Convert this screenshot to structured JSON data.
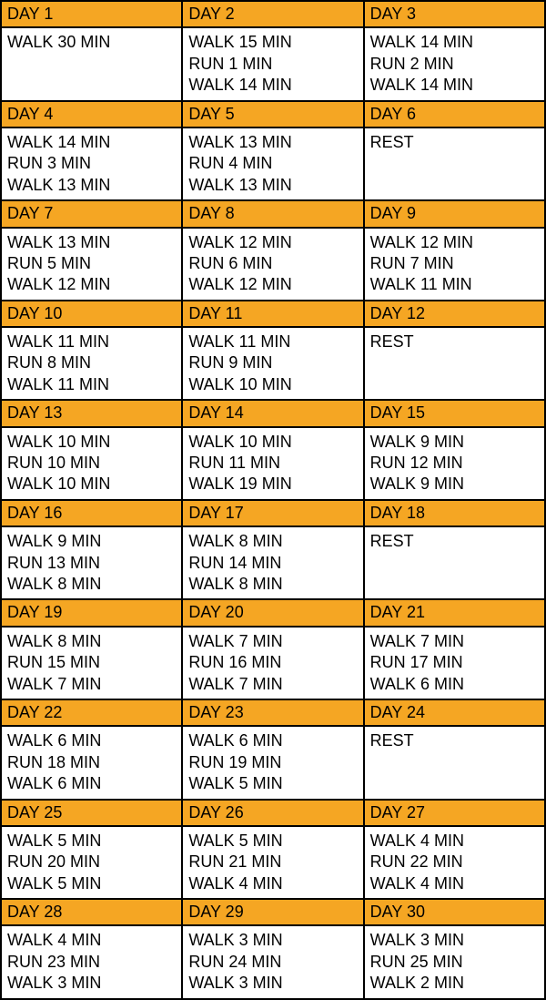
{
  "colors": {
    "header_bg": "#f5a623",
    "border": "#000000",
    "cell_bg": "#ffffff",
    "text": "#000000"
  },
  "font": {
    "family": "Segoe UI, Arial, sans-serif",
    "size_pt": 14
  },
  "columns_per_row": 3,
  "days": [
    {
      "label": "DAY 1",
      "plan": "WALK 30 MIN"
    },
    {
      "label": "DAY 2",
      "plan": "WALK 15 MIN\nRUN 1 MIN\nWALK 14 MIN"
    },
    {
      "label": "DAY 3",
      "plan": "WALK 14 MIN\nRUN 2 MIN\nWALK 14 MIN"
    },
    {
      "label": "DAY 4",
      "plan": "WALK 14 MIN\nRUN 3 MIN\nWALK 13 MIN"
    },
    {
      "label": "DAY 5",
      "plan": "WALK 13 MIN\nRUN 4 MIN\nWALK 13 MIN"
    },
    {
      "label": "DAY 6",
      "plan": "REST"
    },
    {
      "label": "DAY 7",
      "plan": "WALK 13 MIN\nRUN 5 MIN\nWALK 12 MIN"
    },
    {
      "label": "DAY 8",
      "plan": "WALK 12 MIN\nRUN 6 MIN\nWALK 12 MIN"
    },
    {
      "label": "DAY 9",
      "plan": "WALK 12 MIN\nRUN 7 MIN\nWALK 11 MIN"
    },
    {
      "label": "DAY 10",
      "plan": "WALK 11 MIN\nRUN 8 MIN\nWALK 11 MIN"
    },
    {
      "label": "DAY 11",
      "plan": "WALK 11 MIN\nRUN 9 MIN\nWALK 10 MIN"
    },
    {
      "label": "DAY 12",
      "plan": "REST"
    },
    {
      "label": "DAY 13",
      "plan": "WALK 10 MIN\nRUN 10 MIN\nWALK 10 MIN"
    },
    {
      "label": "DAY 14",
      "plan": "WALK 10 MIN\nRUN 11 MIN\nWALK 19 MIN"
    },
    {
      "label": "DAY 15",
      "plan": "WALK 9 MIN\nRUN 12 MIN\nWALK 9 MIN"
    },
    {
      "label": "DAY 16",
      "plan": "WALK 9 MIN\nRUN 13 MIN\nWALK 8 MIN"
    },
    {
      "label": "DAY 17",
      "plan": "WALK 8 MIN\nRUN 14 MIN\nWALK 8 MIN"
    },
    {
      "label": "DAY 18",
      "plan": "REST"
    },
    {
      "label": "DAY 19",
      "plan": "WALK 8 MIN\nRUN 15 MIN\nWALK 7 MIN"
    },
    {
      "label": "DAY 20",
      "plan": "WALK 7 MIN\nRUN 16 MIN\nWALK 7 MIN"
    },
    {
      "label": "DAY 21",
      "plan": "WALK 7 MIN\nRUN 17 MIN\nWALK 6 MIN"
    },
    {
      "label": "DAY 22",
      "plan": "WALK 6 MIN\nRUN 18 MIN\nWALK 6 MIN"
    },
    {
      "label": "DAY 23",
      "plan": "WALK 6 MIN\nRUN 19 MIN\nWALK 5 MIN"
    },
    {
      "label": "DAY 24",
      "plan": "REST"
    },
    {
      "label": "DAY 25",
      "plan": "WALK 5 MIN\nRUN 20 MIN\nWALK 5 MIN"
    },
    {
      "label": "DAY 26",
      "plan": "WALK 5 MIN\nRUN 21 MIN\nWALK 4 MIN"
    },
    {
      "label": "DAY 27",
      "plan": "WALK 4 MIN\nRUN 22 MIN\nWALK 4 MIN"
    },
    {
      "label": "DAY 28",
      "plan": "WALK 4 MIN\nRUN 23 MIN\nWALK 3 MIN"
    },
    {
      "label": "DAY 29",
      "plan": "WALK 3 MIN\nRUN  24 MIN\nWALK 3 MIN"
    },
    {
      "label": "DAY 30",
      "plan": "WALK 3 MIN\nRUN 25 MIN\nWALK 2 MIN"
    }
  ]
}
